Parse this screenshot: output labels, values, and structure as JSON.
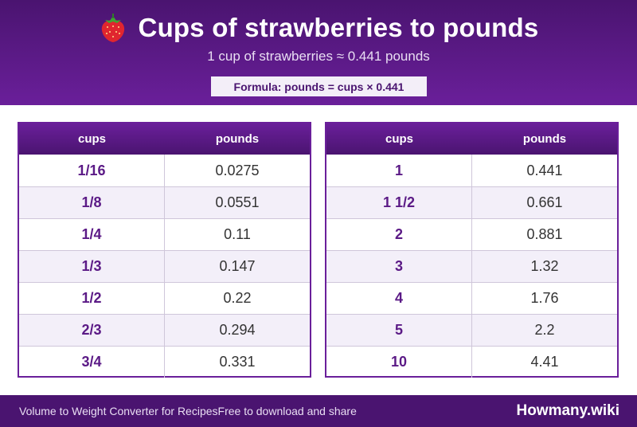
{
  "header": {
    "icon": "strawberry-icon",
    "title": "Cups of strawberries to pounds",
    "subtitle": "1 cup of strawberries ≈ 0.441 pounds",
    "formula": "Formula: pounds = cups × 0.441"
  },
  "tables": [
    {
      "columns": [
        "cups",
        "pounds"
      ],
      "rows": [
        [
          "1/16",
          "0.0275"
        ],
        [
          "1/8",
          "0.0551"
        ],
        [
          "1/4",
          "0.11"
        ],
        [
          "1/3",
          "0.147"
        ],
        [
          "1/2",
          "0.22"
        ],
        [
          "2/3",
          "0.294"
        ],
        [
          "3/4",
          "0.331"
        ]
      ]
    },
    {
      "columns": [
        "cups",
        "pounds"
      ],
      "rows": [
        [
          "1",
          "0.441"
        ],
        [
          "1 1/2",
          "0.661"
        ],
        [
          "2",
          "0.881"
        ],
        [
          "3",
          "1.32"
        ],
        [
          "4",
          "1.76"
        ],
        [
          "5",
          "2.2"
        ],
        [
          "10",
          "4.41"
        ]
      ]
    }
  ],
  "footer": {
    "left_text": "Volume to Weight Converter for Recipes",
    "right_text": "Free to download and share",
    "brand": "Howmany.wiki"
  },
  "colors": {
    "header_dark": "#4a1470",
    "header_light": "#6a1f9a",
    "cup_text": "#5b1a86",
    "alt_row": "#f3eff9"
  }
}
